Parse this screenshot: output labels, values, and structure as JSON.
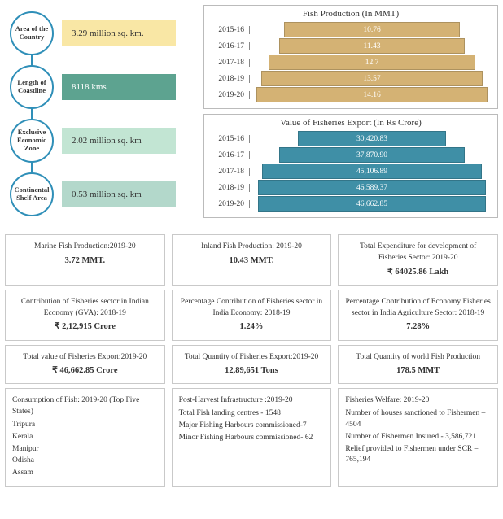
{
  "stats": [
    {
      "label": "Area of the Country",
      "value": "3.29 million sq. km.",
      "bg": "#f9e7a5"
    },
    {
      "label": "Length of Coastline",
      "value": "8118 kms",
      "bg": "#5da390",
      "fg": "#fff"
    },
    {
      "label": "Exclusive Economic Zone",
      "value": "2.02 million sq. km",
      "bg": "#c2e5d3"
    },
    {
      "label": "Continental Shelf Area",
      "value": "0.53 million sq. km",
      "bg": "#b3d8cb"
    }
  ],
  "charts": {
    "production": {
      "title": "Fish Production (In MMT)",
      "bar_color": "#d4b274",
      "text_color": "#ffffff",
      "years": [
        "2015-16",
        "2016-17",
        "2017-18",
        "2018-19",
        "2019-20"
      ],
      "values": [
        10.76,
        11.43,
        12.7,
        13.57,
        14.16
      ],
      "max": 15
    },
    "export": {
      "title": "Value of Fisheries Export (In Rs Crore)",
      "bar_color": "#3f8fa6",
      "text_color": "#ffffff",
      "years": [
        "2015-16",
        "2016-17",
        "2017-18",
        "2018-19",
        "2019-20"
      ],
      "values": [
        30420.83,
        37870.9,
        45106.89,
        46589.37,
        46662.85
      ],
      "labels": [
        "30,420.83",
        "37,870.90",
        "45,106.89",
        "46,589.37",
        "46,662.85"
      ],
      "max": 50000
    }
  },
  "grid": {
    "r1c1_title": "Marine Fish Production:2019-20",
    "r1c1_value": "3.72 MMT.",
    "r1c2_title": "Inland Fish Production: 2019-20",
    "r1c2_value": "10.43 MMT.",
    "r1c3_title": "Total Expenditure for development of Fisheries Sector: 2019-20",
    "r1c3_value": "64025.86 Lakh",
    "r2c1_title": "Contribution of Fisheries sector in Indian Economy (GVA): 2018-19",
    "r2c1_value": "2,12,915 Crore",
    "r2c2_title": "Percentage Contribution of Fisheries sector in India Economy: 2018-19",
    "r2c2_value": "1.24%",
    "r2c3_title": "Percentage Contribution of Economy Fisheries sector in India Agriculture Sector: 2018-19",
    "r2c3_value": "7.28%",
    "r3c1_title": "Total value of Fisheries Export:2019-20",
    "r3c1_value": "46,662.85 Crore",
    "r3c2_title": "Total Quantity of Fisheries Export:2019-20",
    "r3c2_value": "12,89,651 Tons",
    "r3c3_title": "Total Quantity of world Fish Production",
    "r3c3_value": "178.5 MMT",
    "r4c1_title": "Consumption of Fish: 2019-20 (Top Five States)",
    "r4c1_lines": [
      "Tripura",
      "Kerala",
      "Manipur",
      "Odisha",
      "Assam"
    ],
    "r4c2_title": "Post-Harvest Infrastructure :2019-20",
    "r4c2_lines": [
      "Total Fish landing centres - 1548",
      "Major Fishing Harbours commissioned-7",
      "Minor Fishing Harbours commissioned- 62"
    ],
    "r4c3_title": "Fisheries Welfare: 2019-20",
    "r4c3_lines": [
      "Number of houses sanctioned to Fishermen – 4504",
      "Number of Fishermen Insured - 3,586,721",
      "Relief provided to Fishermen under SCR – 765,194"
    ]
  }
}
